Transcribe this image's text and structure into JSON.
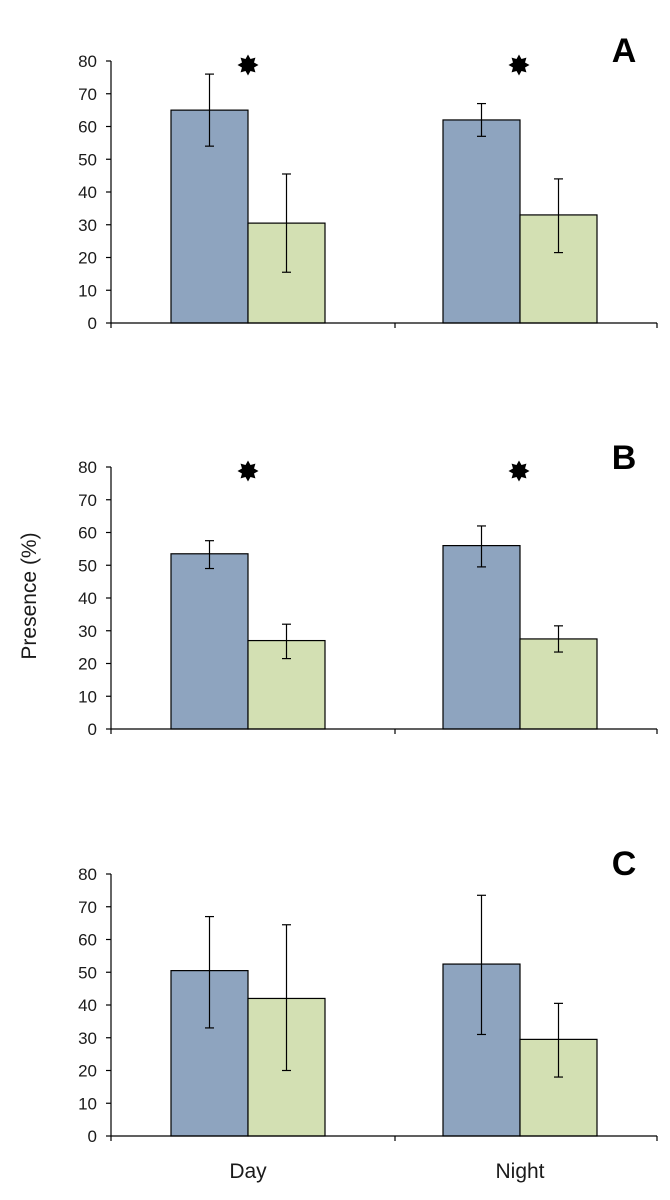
{
  "chart_data": {
    "type": "bar",
    "ylabel": "Presence (%)",
    "categories": [
      "Day",
      "Night"
    ],
    "ylim": [
      0,
      80
    ],
    "yticks": [
      0,
      10,
      20,
      30,
      40,
      50,
      60,
      70,
      80
    ],
    "grid": false,
    "colors": {
      "series_1": "#8ea4bf",
      "series_2": "#d3e0b3",
      "bar_stroke": "#000000",
      "axis": "#000000"
    },
    "significance_marker": "star",
    "panels": [
      {
        "letter": "A",
        "series": [
          {
            "values": [
              65,
              62
            ],
            "error_low": [
              54,
              57
            ],
            "error_high": [
              76,
              67
            ]
          },
          {
            "values": [
              30.5,
              33
            ],
            "error_low": [
              15.5,
              21.5
            ],
            "error_high": [
              45.5,
              44
            ]
          }
        ],
        "significant": [
          true,
          true
        ]
      },
      {
        "letter": "B",
        "series": [
          {
            "values": [
              53.5,
              56
            ],
            "error_low": [
              49,
              49.5
            ],
            "error_high": [
              57.5,
              62
            ]
          },
          {
            "values": [
              27,
              27.5
            ],
            "error_low": [
              21.5,
              23.5
            ],
            "error_high": [
              32,
              31.5
            ]
          }
        ],
        "significant": [
          true,
          true
        ]
      },
      {
        "letter": "C",
        "series": [
          {
            "values": [
              50.5,
              52.5
            ],
            "error_low": [
              33,
              31
            ],
            "error_high": [
              67,
              73.5
            ]
          },
          {
            "values": [
              42,
              29.5
            ],
            "error_low": [
              20,
              18
            ],
            "error_high": [
              64.5,
              40.5
            ]
          }
        ],
        "significant": [
          false,
          false
        ]
      }
    ]
  }
}
